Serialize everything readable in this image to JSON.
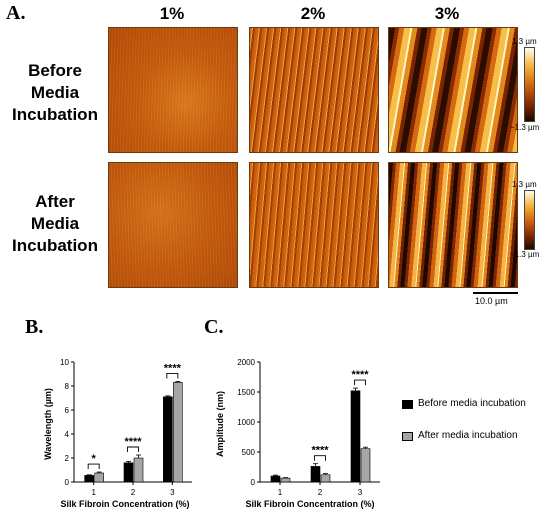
{
  "panel_a": {
    "letter": "A.",
    "columns": [
      "1%",
      "2%",
      "3%"
    ],
    "rows": [
      [
        "Before",
        "Media",
        "Incubation"
      ],
      [
        "After",
        "Media",
        "Incubation"
      ]
    ],
    "colorbar": {
      "top_label": "1.3 µm",
      "bottom_label": "−1.3 µm"
    },
    "scale_bar_label": "10.0 µm",
    "colormap": [
      "#1a0800",
      "#8a2c02",
      "#d2690e",
      "#f4b43c",
      "#fffde8"
    ]
  },
  "legend": {
    "items": [
      {
        "label": "Before media incubation",
        "color": "#000000"
      },
      {
        "label": "After media incubation",
        "color": "#a6a6a6"
      }
    ]
  },
  "chart_data": [
    {
      "letter": "B.",
      "type": "bar",
      "xlabel": "Silk Fibroin Concentration (%)",
      "ylabel": "Wavelength (µm)",
      "categories": [
        "1",
        "2",
        "3"
      ],
      "ylim": [
        0,
        10
      ],
      "yticks": [
        0,
        2,
        4,
        6,
        8,
        10
      ],
      "series": [
        {
          "name": "Before media incubation",
          "color": "#000000",
          "values": [
            0.55,
            1.6,
            7.1
          ],
          "errors": [
            0.05,
            0.12,
            0.08
          ]
        },
        {
          "name": "After media incubation",
          "color": "#a6a6a6",
          "values": [
            0.75,
            2.0,
            8.3
          ],
          "errors": [
            0.08,
            0.25,
            0.08
          ]
        }
      ],
      "significance": [
        "*",
        "****",
        "****"
      ]
    },
    {
      "letter": "C.",
      "type": "bar",
      "xlabel": "Silk Fibroin Concentration (%)",
      "ylabel": "Amplitude (nm)",
      "categories": [
        "1",
        "2",
        "3"
      ],
      "ylim": [
        0,
        2000
      ],
      "yticks": [
        0,
        500,
        1000,
        1500,
        2000
      ],
      "series": [
        {
          "name": "Before media incubation",
          "color": "#000000",
          "values": [
            100,
            260,
            1520
          ],
          "errors": [
            15,
            45,
            45
          ]
        },
        {
          "name": "After media incubation",
          "color": "#a6a6a6",
          "values": [
            65,
            120,
            555
          ],
          "errors": [
            8,
            20,
            25
          ]
        }
      ],
      "significance": [
        "",
        "****",
        "****"
      ]
    }
  ]
}
